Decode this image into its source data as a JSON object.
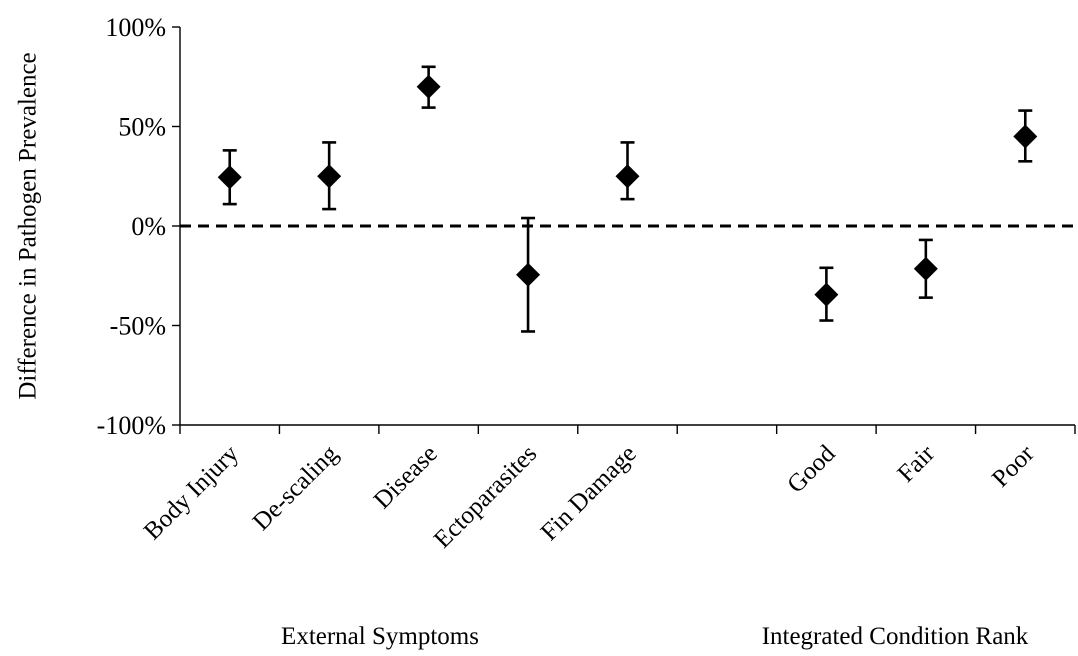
{
  "chart_data": {
    "type": "scatter",
    "ylabel": "Difference in Pathogen Prevalence",
    "ylim": [
      -100,
      100
    ],
    "yticks": [
      100,
      50,
      0,
      -50,
      -100
    ],
    "ytick_labels": [
      "100%",
      "50%",
      "0%",
      "-50%",
      "-100%"
    ],
    "reference_line": {
      "y": 0,
      "style": "dashed"
    },
    "groups": [
      {
        "name": "External Symptoms",
        "categories": [
          "Body Injury",
          "De-scaling",
          "Disease",
          "Ectoparasites",
          "Fin Damage"
        ]
      },
      {
        "name": "Integrated Condition Rank",
        "categories": [
          "Good",
          "Fair",
          "Poor"
        ]
      }
    ],
    "points": [
      {
        "category": "Body Injury",
        "y": 24.5,
        "err_low": 11,
        "err_high": 38
      },
      {
        "category": "De-scaling",
        "y": 25,
        "err_low": 8.5,
        "err_high": 42
      },
      {
        "category": "Disease",
        "y": 70,
        "err_low": 59.5,
        "err_high": 80
      },
      {
        "category": "Ectoparasites",
        "y": -24.5,
        "err_low": -53,
        "err_high": 4
      },
      {
        "category": "Fin Damage",
        "y": 25,
        "err_low": 13.5,
        "err_high": 42
      },
      {
        "category": "Good",
        "y": -34.5,
        "err_low": -47.5,
        "err_high": -21
      },
      {
        "category": "Fair",
        "y": -21.5,
        "err_low": -36,
        "err_high": -7
      },
      {
        "category": "Poor",
        "y": 45,
        "err_low": 32.5,
        "err_high": 58
      }
    ],
    "marker": "diamond",
    "colors": {
      "marker": "#000000",
      "axis": "#000000",
      "reference_line": "#000000"
    },
    "grid": false,
    "legend": "none"
  }
}
